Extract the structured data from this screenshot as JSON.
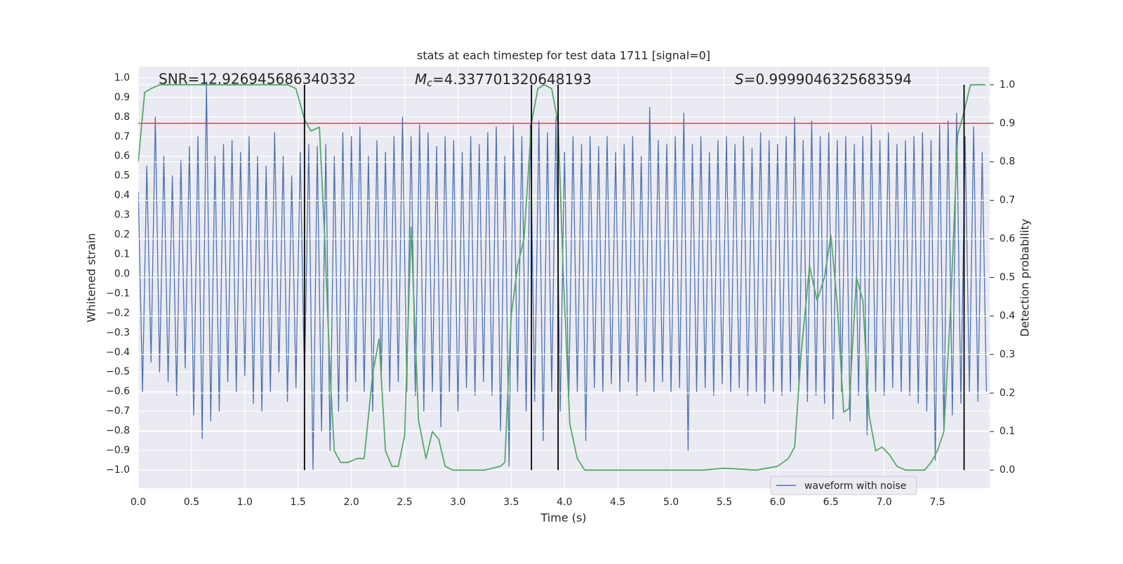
{
  "chart_data": {
    "type": "line",
    "title": "stats at each timestep for test data 1711 [signal=0]",
    "xlabel": "Time (s)",
    "ylabel": "Whitened strain",
    "y2label": "Detection probability",
    "xlim": [
      0,
      7.99
    ],
    "ylim": [
      -1.093,
      1.057
    ],
    "y2lim": [
      -0.047,
      1.047
    ],
    "grid": true,
    "legend": "lower right",
    "xticks": [
      {
        "value": 0,
        "label": "0.0"
      },
      {
        "value": 0.5,
        "label": "0.5"
      },
      {
        "value": 1,
        "label": "1.0"
      },
      {
        "value": 1.5,
        "label": "1.5"
      },
      {
        "value": 2,
        "label": "2.0"
      },
      {
        "value": 2.5,
        "label": "2.5"
      },
      {
        "value": 3,
        "label": "3.0"
      },
      {
        "value": 3.5,
        "label": "3.5"
      },
      {
        "value": 4,
        "label": "4.0"
      },
      {
        "value": 4.5,
        "label": "4.5"
      },
      {
        "value": 5,
        "label": "5.0"
      },
      {
        "value": 5.5,
        "label": "5.5"
      },
      {
        "value": 6,
        "label": "6.0"
      },
      {
        "value": 6.5,
        "label": "6.5"
      },
      {
        "value": 7,
        "label": "7.0"
      },
      {
        "value": 7.5,
        "label": "7.5"
      }
    ],
    "yticks": [
      {
        "value": -1,
        "label": "−1.0"
      },
      {
        "value": -0.9,
        "label": "−0.9"
      },
      {
        "value": -0.8,
        "label": "−0.8"
      },
      {
        "value": -0.7,
        "label": "−0.7"
      },
      {
        "value": -0.6,
        "label": "−0.6"
      },
      {
        "value": -0.5,
        "label": "−0.5"
      },
      {
        "value": -0.4,
        "label": "−0.4"
      },
      {
        "value": -0.3,
        "label": "−0.3"
      },
      {
        "value": -0.2,
        "label": "−0.2"
      },
      {
        "value": -0.1,
        "label": "−0.1"
      },
      {
        "value": 0,
        "label": "0.0"
      },
      {
        "value": 0.1,
        "label": "0.1"
      },
      {
        "value": 0.2,
        "label": "0.2"
      },
      {
        "value": 0.3,
        "label": "0.3"
      },
      {
        "value": 0.4,
        "label": "0.4"
      },
      {
        "value": 0.5,
        "label": "0.5"
      },
      {
        "value": 0.6,
        "label": "0.6"
      },
      {
        "value": 0.7,
        "label": "0.7"
      },
      {
        "value": 0.8,
        "label": "0.8"
      },
      {
        "value": 0.9,
        "label": "0.9"
      },
      {
        "value": 1,
        "label": "1.0"
      }
    ],
    "y2ticks": [
      {
        "value": 0,
        "label": "0.0"
      },
      {
        "value": 0.1,
        "label": "0.1"
      },
      {
        "value": 0.2,
        "label": "0.2"
      },
      {
        "value": 0.3,
        "label": "0.3"
      },
      {
        "value": 0.4,
        "label": "0.4"
      },
      {
        "value": 0.5,
        "label": "0.5"
      },
      {
        "value": 0.6,
        "label": "0.6"
      },
      {
        "value": 0.7,
        "label": "0.7"
      },
      {
        "value": 0.8,
        "label": "0.8"
      },
      {
        "value": 0.9,
        "label": "0.9"
      },
      {
        "value": 1,
        "label": "1.0"
      }
    ],
    "annotations": [
      {
        "text": "SNR=12.926945686340332"
      },
      {
        "symbol": "M",
        "subscript": "c",
        "text": "=4.337701320648193"
      },
      {
        "symbol": "S",
        "text": "=0.9999046325683594"
      }
    ],
    "threshold": {
      "value": 0.9,
      "color": "#c44e52"
    },
    "vlines": {
      "x": [
        1.56,
        3.69,
        3.94,
        7.75
      ],
      "y2range": [
        0,
        1
      ],
      "color": "#000000"
    },
    "series": [
      {
        "name": "waveform with noise",
        "color": "#4c72b0",
        "x": [
          0,
          0.04,
          0.08,
          0.12,
          0.16,
          0.2,
          0.24,
          0.28,
          0.32,
          0.36,
          0.4,
          0.44,
          0.48,
          0.52,
          0.56,
          0.6,
          0.64,
          0.68,
          0.72,
          0.76,
          0.8,
          0.84,
          0.88,
          0.92,
          0.96,
          1,
          1.04,
          1.08,
          1.12,
          1.16,
          1.2,
          1.24,
          1.28,
          1.32,
          1.36,
          1.4,
          1.44,
          1.48,
          1.52,
          1.56,
          1.6,
          1.64,
          1.68,
          1.72,
          1.76,
          1.8,
          1.84,
          1.88,
          1.92,
          1.96,
          2,
          2.04,
          2.08,
          2.12,
          2.16,
          2.2,
          2.24,
          2.28,
          2.32,
          2.36,
          2.4,
          2.44,
          2.48,
          2.52,
          2.56,
          2.6,
          2.64,
          2.68,
          2.72,
          2.76,
          2.8,
          2.84,
          2.88,
          2.92,
          2.96,
          3,
          3.04,
          3.08,
          3.12,
          3.16,
          3.2,
          3.24,
          3.28,
          3.32,
          3.36,
          3.4,
          3.44,
          3.48,
          3.52,
          3.56,
          3.6,
          3.64,
          3.68,
          3.72,
          3.76,
          3.8,
          3.84,
          3.88,
          3.92,
          3.96,
          4,
          4.04,
          4.08,
          4.12,
          4.16,
          4.2,
          4.24,
          4.28,
          4.32,
          4.36,
          4.4,
          4.44,
          4.48,
          4.52,
          4.56,
          4.6,
          4.64,
          4.68,
          4.72,
          4.76,
          4.8,
          4.84,
          4.88,
          4.92,
          4.96,
          5,
          5.04,
          5.08,
          5.12,
          5.16,
          5.2,
          5.24,
          5.28,
          5.32,
          5.36,
          5.4,
          5.44,
          5.48,
          5.52,
          5.56,
          5.6,
          5.64,
          5.68,
          5.72,
          5.76,
          5.8,
          5.84,
          5.88,
          5.92,
          5.96,
          6,
          6.04,
          6.08,
          6.12,
          6.16,
          6.2,
          6.24,
          6.28,
          6.32,
          6.36,
          6.4,
          6.44,
          6.48,
          6.52,
          6.56,
          6.6,
          6.64,
          6.68,
          6.72,
          6.76,
          6.8,
          6.84,
          6.88,
          6.92,
          6.96,
          7,
          7.04,
          7.08,
          7.12,
          7.16,
          7.2,
          7.24,
          7.28,
          7.32,
          7.36,
          7.4,
          7.44,
          7.48,
          7.52,
          7.56,
          7.6,
          7.64,
          7.68,
          7.72,
          7.76,
          7.8,
          7.84,
          7.88,
          7.92,
          7.96
        ],
        "values": [
          0.42,
          -0.6,
          0.55,
          -0.45,
          0.8,
          -0.5,
          0.6,
          -0.55,
          0.5,
          -0.62,
          0.58,
          -0.48,
          0.65,
          -0.72,
          0.7,
          -0.84,
          0.98,
          -0.75,
          0.6,
          -0.7,
          0.66,
          -0.55,
          0.68,
          -0.6,
          0.62,
          -0.52,
          0.7,
          -0.66,
          0.6,
          -0.7,
          0.55,
          -0.6,
          0.72,
          -0.5,
          0.6,
          -0.65,
          0.5,
          -0.58,
          0.62,
          -0.55,
          0.66,
          -1.0,
          0.65,
          -0.8,
          0.66,
          -0.9,
          0.6,
          -0.7,
          0.72,
          -0.65,
          0.7,
          -0.55,
          0.75,
          -0.6,
          0.6,
          -0.7,
          0.68,
          -0.55,
          0.62,
          -0.6,
          0.7,
          -0.55,
          0.8,
          -0.6,
          0.7,
          -0.62,
          0.76,
          -0.7,
          0.72,
          -0.6,
          0.65,
          -0.78,
          0.7,
          -0.6,
          0.68,
          -0.7,
          0.62,
          -0.58,
          0.7,
          -0.62,
          0.66,
          -0.55,
          0.72,
          -0.62,
          0.75,
          -0.8,
          0.6,
          -0.98,
          0.76,
          -0.6,
          0.7,
          -0.7,
          0.76,
          -0.65,
          0.78,
          -0.85,
          0.72,
          -0.6,
          0.8,
          -0.7,
          0.62,
          -0.65,
          0.7,
          -0.6,
          0.66,
          -0.85,
          0.7,
          -0.58,
          0.65,
          -0.6,
          0.7,
          -0.56,
          0.62,
          -0.6,
          0.66,
          -0.55,
          0.7,
          -0.62,
          0.6,
          -0.55,
          0.85,
          -0.6,
          0.68,
          -0.55,
          0.66,
          -0.6,
          0.7,
          -0.58,
          0.82,
          -0.9,
          0.66,
          -0.6,
          0.7,
          -0.58,
          0.62,
          -0.62,
          0.68,
          -0.56,
          0.7,
          -0.6,
          0.66,
          -0.58,
          0.7,
          -0.62,
          0.64,
          -0.6,
          0.72,
          -0.66,
          0.68,
          -0.6,
          0.66,
          -0.62,
          0.7,
          -0.6,
          0.8,
          -0.58,
          0.68,
          -0.65,
          0.78,
          -0.62,
          0.7,
          -0.66,
          0.72,
          -0.74,
          0.68,
          -0.6,
          0.7,
          -0.75,
          0.66,
          -0.62,
          0.7,
          -0.82,
          0.76,
          -0.6,
          0.68,
          -0.62,
          0.72,
          -0.58,
          0.66,
          -0.6,
          0.68,
          -0.62,
          0.7,
          -0.66,
          0.72,
          -0.7,
          0.68,
          -0.95,
          0.76,
          -0.8,
          0.78,
          -0.72,
          0.82,
          -0.66,
          0.7,
          -0.6,
          0.75,
          -0.65,
          0.62,
          -0.6
        ]
      },
      {
        "color": "#55a868",
        "axis": "y2",
        "x": [
          0,
          0.06,
          0.12,
          0.2,
          0.5,
          1.0,
          1.4,
          1.48,
          1.56,
          1.62,
          1.7,
          1.75,
          1.8,
          1.84,
          1.9,
          1.97,
          2.05,
          2.12,
          2.2,
          2.26,
          2.32,
          2.38,
          2.44,
          2.5,
          2.56,
          2.63,
          2.7,
          2.76,
          2.82,
          2.88,
          2.95,
          3.1,
          3.25,
          3.4,
          3.44,
          3.5,
          3.56,
          3.62,
          3.69,
          3.75,
          3.81,
          3.88,
          3.94,
          3.99,
          4.05,
          4.12,
          4.19,
          4.5,
          4.8,
          5.0,
          5.3,
          5.5,
          5.8,
          6.0,
          6.1,
          6.16,
          6.22,
          6.3,
          6.37,
          6.44,
          6.5,
          6.56,
          6.62,
          6.67,
          6.74,
          6.8,
          6.86,
          6.92,
          6.98,
          7.05,
          7.12,
          7.2,
          7.3,
          7.38,
          7.44,
          7.5,
          7.56,
          7.62,
          7.69,
          7.75,
          7.81,
          7.88,
          7.95
        ],
        "values": [
          0.8,
          0.98,
          0.99,
          1.0,
          1.0,
          1.0,
          1.0,
          0.99,
          0.91,
          0.88,
          0.89,
          0.6,
          0.25,
          0.05,
          0.02,
          0.02,
          0.03,
          0.03,
          0.25,
          0.34,
          0.05,
          0.01,
          0.01,
          0.09,
          0.63,
          0.13,
          0.03,
          0.1,
          0.08,
          0.01,
          0.0,
          0.0,
          0.0,
          0.01,
          0.02,
          0.4,
          0.53,
          0.6,
          0.9,
          0.99,
          1.0,
          0.99,
          0.9,
          0.5,
          0.12,
          0.03,
          0.0,
          0.0,
          0.0,
          0.0,
          0.0,
          0.005,
          0.0,
          0.01,
          0.03,
          0.06,
          0.3,
          0.53,
          0.44,
          0.5,
          0.61,
          0.43,
          0.15,
          0.16,
          0.5,
          0.44,
          0.14,
          0.05,
          0.06,
          0.04,
          0.01,
          0.0,
          0.0,
          0.0,
          0.02,
          0.05,
          0.1,
          0.4,
          0.87,
          0.93,
          1.0,
          1.0,
          1.0
        ]
      }
    ]
  }
}
